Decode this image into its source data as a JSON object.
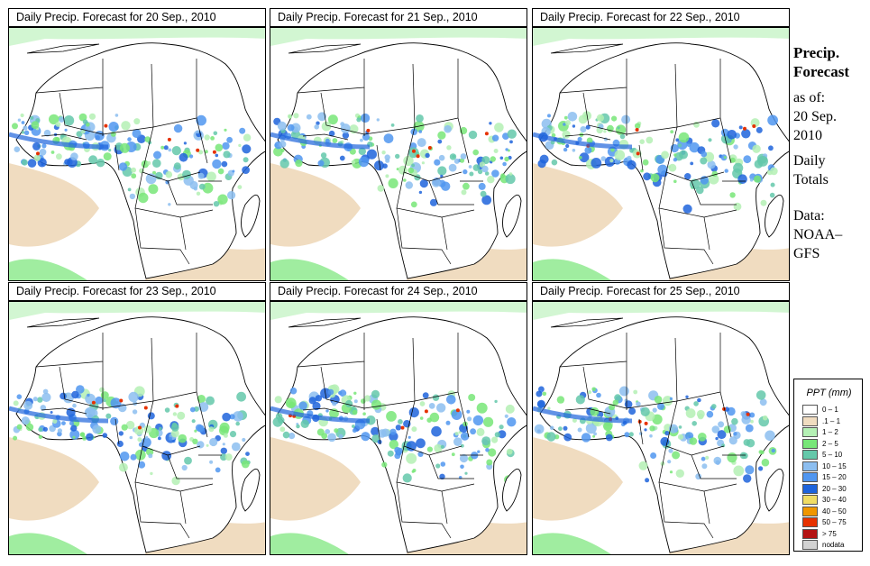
{
  "panels": [
    {
      "title": "Daily Precip. Forecast for  20 Sep., 2010"
    },
    {
      "title": "Daily Precip. Forecast for  21 Sep., 2010"
    },
    {
      "title": "Daily Precip. Forecast for  22 Sep., 2010"
    },
    {
      "title": "Daily Precip. Forecast for  23 Sep., 2010"
    },
    {
      "title": "Daily Precip. Forecast for  24 Sep., 2010"
    },
    {
      "title": "Daily Precip. Forecast for  25 Sep., 2010"
    }
  ],
  "sidebar": {
    "title_line1": "Precip.",
    "title_line2": "Forecast",
    "asof_line1": "as of:",
    "asof_line2": "20 Sep.",
    "asof_line3": "2010",
    "totals_line1": "Daily",
    "totals_line2": "Totals",
    "data_line1": "Data:",
    "data_line2": "NOAA–",
    "data_line3": "GFS"
  },
  "legend": {
    "title": "PPT (mm)",
    "items": [
      {
        "label": "0 – 1",
        "color": "#ffffff"
      },
      {
        "label": ".1 – 1",
        "color": "#f0dcc0"
      },
      {
        "label": "1 – 2",
        "color": "#b4f0b4"
      },
      {
        "label": "2 – 5",
        "color": "#78e678"
      },
      {
        "label": "5 – 10",
        "color": "#64c8aa"
      },
      {
        "label": "10 – 15",
        "color": "#8cbef0"
      },
      {
        "label": "15 – 20",
        "color": "#5096f0"
      },
      {
        "label": "20 – 30",
        "color": "#1e64dc"
      },
      {
        "label": "30 – 40",
        "color": "#f0dc64"
      },
      {
        "label": "40 – 50",
        "color": "#f09600"
      },
      {
        "label": "50 – 75",
        "color": "#e63200"
      },
      {
        "label": "> 75",
        "color": "#b41414"
      },
      {
        "label": "nodata",
        "color": "#d2d2d2"
      }
    ]
  }
}
